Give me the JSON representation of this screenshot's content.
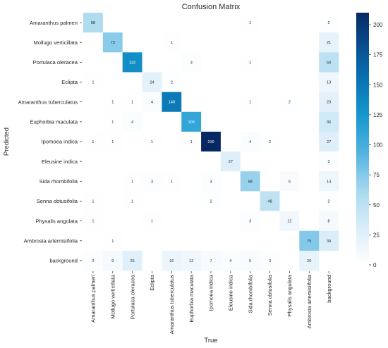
{
  "chart_data": {
    "type": "heatmap",
    "title": "Confusion Matrix",
    "xlabel": "True",
    "ylabel": "Predicted",
    "rows": [
      "Amaranthus palmeri",
      "Mollugo verticillata",
      "Portulaca oleracea",
      "Eclipta",
      "Amaranthus tuberculatus",
      "Euphorbia maculata",
      "Ipomoea indica",
      "Eleusine indica",
      "Sida rhombifolia",
      "Senna obtusifolia",
      "Physalis angulata",
      "Ambrosia artemisiifolia",
      "background"
    ],
    "columns": [
      "Amaranthus palmeri",
      "Mollugo verticillata",
      "Portulaca oleracea",
      "Eclipta",
      "Amaranthus tuberculatus",
      "Euphorbia maculata",
      "Ipomoea indica",
      "Eleusine indica",
      "Sida rhombifolia",
      "Senna obtusifolia",
      "Physalis angulata",
      "Ambrosia artemisiifolia",
      "background"
    ],
    "values": [
      [
        58,
        0,
        0,
        0,
        0,
        0,
        0,
        0,
        1,
        0,
        0,
        0,
        2
      ],
      [
        0,
        73,
        0,
        0,
        1,
        0,
        0,
        0,
        0,
        0,
        0,
        0,
        21
      ],
      [
        0,
        0,
        132,
        0,
        0,
        3,
        0,
        0,
        1,
        0,
        0,
        0,
        50
      ],
      [
        1,
        0,
        0,
        24,
        2,
        0,
        0,
        0,
        0,
        0,
        0,
        0,
        13
      ],
      [
        0,
        1,
        1,
        4,
        148,
        0,
        0,
        0,
        1,
        0,
        2,
        0,
        23
      ],
      [
        0,
        1,
        4,
        0,
        0,
        109,
        0,
        0,
        0,
        0,
        0,
        0,
        36
      ],
      [
        1,
        1,
        0,
        1,
        0,
        1,
        210,
        0,
        4,
        2,
        0,
        0,
        27
      ],
      [
        0,
        0,
        0,
        0,
        0,
        0,
        0,
        27,
        0,
        0,
        0,
        0,
        3
      ],
      [
        0,
        0,
        1,
        3,
        1,
        0,
        3,
        0,
        68,
        0,
        6,
        0,
        14
      ],
      [
        1,
        0,
        1,
        0,
        0,
        0,
        2,
        0,
        0,
        48,
        0,
        0,
        2
      ],
      [
        1,
        0,
        0,
        1,
        0,
        0,
        0,
        0,
        3,
        0,
        12,
        0,
        8
      ],
      [
        0,
        1,
        0,
        0,
        0,
        0,
        0,
        0,
        0,
        0,
        0,
        75,
        30
      ],
      [
        3,
        9,
        26,
        0,
        16,
        12,
        7,
        4,
        5,
        3,
        0,
        20,
        0
      ]
    ],
    "zero_cells_blank": true,
    "colorbar": {
      "min": 0,
      "max": 210,
      "ticks": [
        0,
        25,
        50,
        75,
        100,
        125,
        150,
        175,
        200
      ],
      "colormap": "Blues"
    },
    "grid": false
  }
}
